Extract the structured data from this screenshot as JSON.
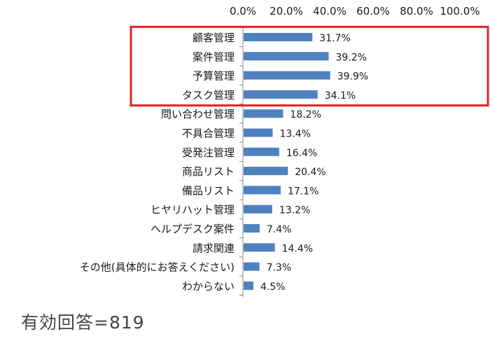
{
  "chart_data": {
    "type": "bar",
    "orientation": "horizontal",
    "categories": [
      "顧客管理",
      "案件管理",
      "予算管理",
      "タスク管理",
      "問い合わせ管理",
      "不具合管理",
      "受発注管理",
      "商品リスト",
      "備品リスト",
      "ヒヤリハット管理",
      "ヘルプデスク案件",
      "請求関連",
      "その他(具体的にお答えください)",
      "わからない"
    ],
    "values": [
      31.7,
      39.2,
      39.9,
      34.1,
      18.2,
      13.4,
      16.4,
      20.4,
      17.1,
      13.2,
      7.4,
      14.4,
      7.3,
      4.5
    ],
    "value_labels": [
      "31.7%",
      "39.2%",
      "39.9%",
      "34.1%",
      "18.2%",
      "13.4%",
      "16.4%",
      "20.4%",
      "17.1%",
      "13.2%",
      "7.4%",
      "14.4%",
      "7.3%",
      "4.5%"
    ],
    "x_ticks": [
      "0.0%",
      "20.0%",
      "40.0%",
      "60.0%",
      "80.0%",
      "100.0%"
    ],
    "xlim": [
      0,
      100
    ],
    "grid": false,
    "axis_position": "top",
    "highlighted_categories": [
      "顧客管理",
      "案件管理",
      "予算管理",
      "タスク管理"
    ],
    "colors": {
      "bar": "#4f81bd",
      "highlight_box": "#e8202a",
      "axis": "#8c8c8c",
      "text": "#1a1a1a"
    }
  },
  "note": "有効回答=819"
}
